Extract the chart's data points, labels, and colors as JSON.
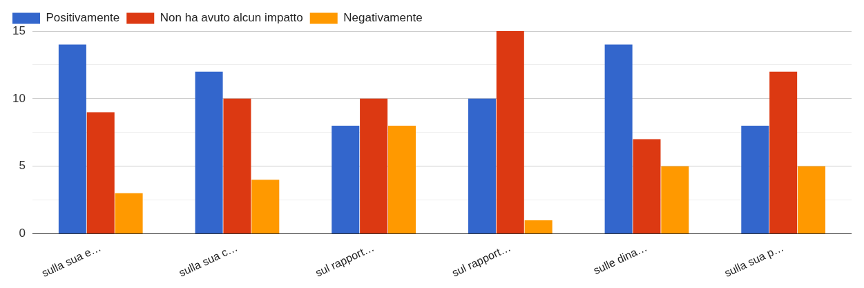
{
  "chart_data": {
    "type": "bar",
    "categories": [
      "sulla sua e…",
      "sulla sua c…",
      "sul rapport…",
      "sul rapport…",
      "sulle dina…",
      "sulla sua p…"
    ],
    "series": [
      {
        "name": "Positivamente",
        "color": "#3366cc",
        "values": [
          14,
          12,
          8,
          10,
          14,
          8
        ]
      },
      {
        "name": "Non ha avuto alcun impatto",
        "color": "#dc3912",
        "values": [
          9,
          10,
          10,
          15,
          7,
          12
        ]
      },
      {
        "name": "Negativamente",
        "color": "#ff9900",
        "values": [
          3,
          4,
          8,
          1,
          5,
          5
        ]
      }
    ],
    "ylim": [
      0,
      15
    ],
    "yticks": [
      0,
      {
        "value": 2.5,
        "label": null
      },
      5,
      {
        "value": 7.5,
        "label": null
      },
      10,
      {
        "value": 12.5,
        "label": null
      },
      15
    ],
    "grid": "y",
    "legend": "top left"
  }
}
